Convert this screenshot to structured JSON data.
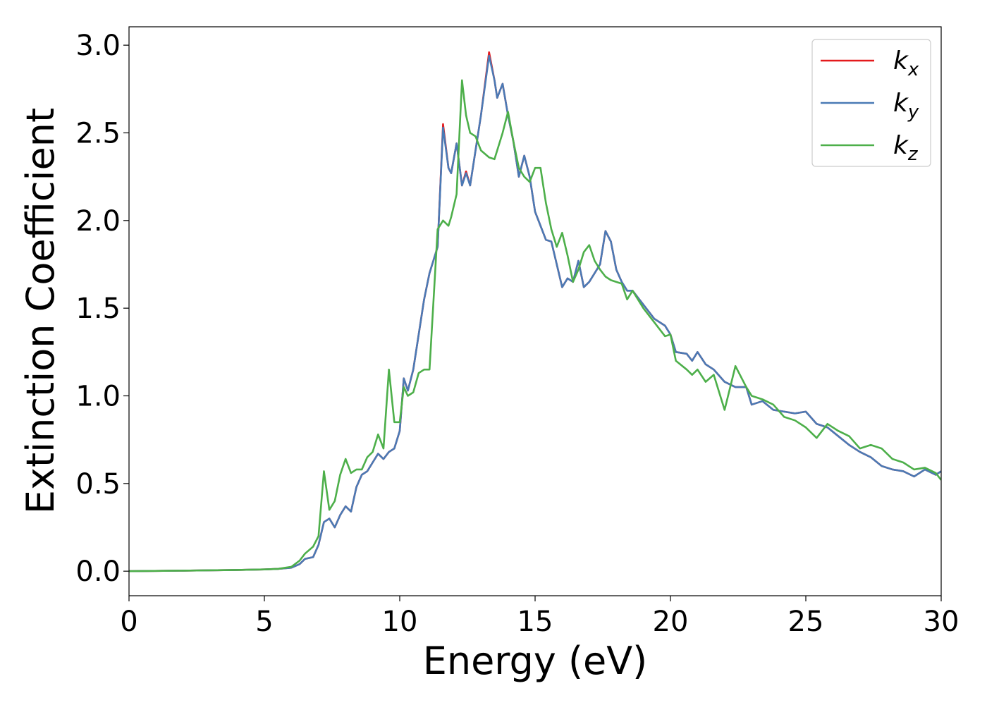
{
  "chart_data": {
    "type": "line",
    "x_label": "Energy (eV)",
    "y_label": "Extinction Coefficient",
    "x": [
      0,
      2,
      4,
      5,
      5.5,
      6,
      6.3,
      6.5,
      6.8,
      7,
      7.2,
      7.4,
      7.6,
      7.8,
      8,
      8.2,
      8.4,
      8.6,
      8.8,
      9,
      9.2,
      9.4,
      9.6,
      9.8,
      10,
      10.15,
      10.3,
      10.5,
      10.7,
      10.9,
      11.1,
      11.4,
      11.6,
      11.8,
      11.9,
      12.1,
      12.3,
      12.45,
      12.6,
      12.8,
      13,
      13.3,
      13.5,
      13.6,
      13.8,
      14,
      14.2,
      14.4,
      14.6,
      14.8,
      15,
      15.2,
      15.4,
      15.6,
      15.8,
      16,
      16.2,
      16.4,
      16.6,
      16.8,
      17,
      17.2,
      17.4,
      17.6,
      17.8,
      18,
      18.2,
      18.4,
      18.6,
      19,
      19.4,
      19.8,
      20,
      20.2,
      20.6,
      20.8,
      21,
      21.3,
      21.6,
      22,
      22.4,
      22.8,
      23,
      23.4,
      23.8,
      24.2,
      24.6,
      25,
      25.4,
      25.8,
      26.2,
      26.6,
      27,
      27.4,
      27.8,
      28.2,
      28.6,
      29,
      29.4,
      29.8,
      30
    ],
    "series": [
      {
        "name": "kx",
        "color": "#e41a1c",
        "values": [
          0,
          0.003,
          0.007,
          0.01,
          0.013,
          0.02,
          0.04,
          0.07,
          0.08,
          0.15,
          0.28,
          0.3,
          0.25,
          0.32,
          0.37,
          0.34,
          0.48,
          0.55,
          0.57,
          0.62,
          0.67,
          0.64,
          0.68,
          0.7,
          0.8,
          1.1,
          1.03,
          1.15,
          1.35,
          1.55,
          1.7,
          1.85,
          2.55,
          2.3,
          2.27,
          2.44,
          2.2,
          2.28,
          2.2,
          2.4,
          2.6,
          2.96,
          2.8,
          2.7,
          2.78,
          2.6,
          2.45,
          2.25,
          2.37,
          2.25,
          2.05,
          1.97,
          1.89,
          1.88,
          1.75,
          1.62,
          1.67,
          1.65,
          1.77,
          1.62,
          1.65,
          1.7,
          1.75,
          1.94,
          1.88,
          1.72,
          1.65,
          1.6,
          1.6,
          1.52,
          1.44,
          1.4,
          1.35,
          1.25,
          1.24,
          1.2,
          1.25,
          1.18,
          1.15,
          1.08,
          1.05,
          1.05,
          0.95,
          0.97,
          0.92,
          0.91,
          0.9,
          0.91,
          0.84,
          0.82,
          0.77,
          0.72,
          0.68,
          0.65,
          0.6,
          0.58,
          0.57,
          0.54,
          0.58,
          0.55,
          0.57
        ]
      },
      {
        "name": "ky",
        "color": "#4a7ab5",
        "values": [
          0,
          0.003,
          0.007,
          0.01,
          0.013,
          0.02,
          0.04,
          0.07,
          0.08,
          0.15,
          0.28,
          0.3,
          0.25,
          0.32,
          0.37,
          0.34,
          0.48,
          0.55,
          0.57,
          0.62,
          0.67,
          0.64,
          0.68,
          0.7,
          0.8,
          1.1,
          1.03,
          1.15,
          1.35,
          1.55,
          1.7,
          1.85,
          2.53,
          2.3,
          2.27,
          2.44,
          2.2,
          2.27,
          2.2,
          2.4,
          2.6,
          2.94,
          2.8,
          2.7,
          2.78,
          2.6,
          2.45,
          2.25,
          2.37,
          2.25,
          2.05,
          1.97,
          1.89,
          1.88,
          1.75,
          1.62,
          1.67,
          1.65,
          1.77,
          1.62,
          1.65,
          1.7,
          1.75,
          1.94,
          1.88,
          1.72,
          1.65,
          1.6,
          1.6,
          1.52,
          1.44,
          1.4,
          1.35,
          1.25,
          1.24,
          1.2,
          1.25,
          1.18,
          1.15,
          1.08,
          1.05,
          1.05,
          0.95,
          0.97,
          0.92,
          0.91,
          0.9,
          0.91,
          0.84,
          0.82,
          0.77,
          0.72,
          0.68,
          0.65,
          0.6,
          0.58,
          0.57,
          0.54,
          0.58,
          0.55,
          0.57
        ]
      },
      {
        "name": "kz",
        "color": "#4daf4a",
        "values": [
          0,
          0.003,
          0.007,
          0.01,
          0.013,
          0.025,
          0.06,
          0.1,
          0.14,
          0.2,
          0.57,
          0.35,
          0.4,
          0.55,
          0.64,
          0.56,
          0.58,
          0.58,
          0.65,
          0.68,
          0.78,
          0.7,
          1.15,
          0.85,
          0.85,
          1.05,
          1.0,
          1.02,
          1.13,
          1.15,
          1.15,
          1.95,
          2.0,
          1.97,
          2.02,
          2.15,
          2.8,
          2.6,
          2.5,
          2.48,
          2.4,
          2.36,
          2.35,
          2.4,
          2.5,
          2.62,
          2.45,
          2.3,
          2.25,
          2.22,
          2.3,
          2.3,
          2.1,
          1.95,
          1.85,
          1.93,
          1.8,
          1.65,
          1.72,
          1.82,
          1.86,
          1.77,
          1.72,
          1.68,
          1.66,
          1.65,
          1.64,
          1.55,
          1.6,
          1.5,
          1.42,
          1.34,
          1.35,
          1.2,
          1.15,
          1.12,
          1.15,
          1.08,
          1.12,
          0.92,
          1.17,
          1.05,
          1.0,
          0.98,
          0.95,
          0.88,
          0.86,
          0.82,
          0.76,
          0.84,
          0.8,
          0.77,
          0.7,
          0.72,
          0.7,
          0.64,
          0.62,
          0.58,
          0.59,
          0.56,
          0.52
        ]
      }
    ],
    "xlim": [
      0,
      30
    ],
    "xticks": [
      0,
      5,
      10,
      15,
      20,
      25,
      30
    ],
    "ylim": [
      -0.14,
      3.105
    ],
    "yticks": [
      {
        "value": 0,
        "label": "0.0"
      },
      {
        "value": 0.5,
        "label": "0.5"
      },
      {
        "value": 1,
        "label": "1.0"
      },
      {
        "value": 1.5,
        "label": "1.5"
      },
      {
        "value": 2,
        "label": "2.0"
      },
      {
        "value": 2.5,
        "label": "2.5"
      },
      {
        "value": 3,
        "label": "3.0"
      }
    ],
    "legend": "upper right",
    "grid": false
  }
}
